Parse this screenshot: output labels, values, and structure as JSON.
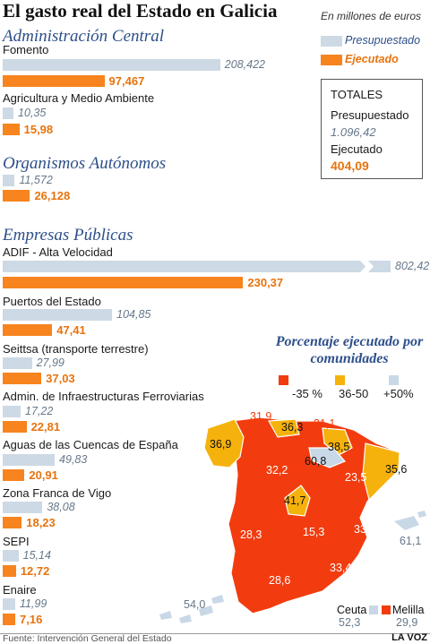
{
  "title": "El gasto real del Estado en Galicia",
  "units": "En millones de euros",
  "legend": {
    "presupuestado": "Presupuestado",
    "ejecutado": "Ejecutado"
  },
  "colors": {
    "presupuestado": "#cdd9e5",
    "ejecutado": "#f7841e",
    "section": "#2d4f8a",
    "red": "#f23c0f",
    "yellow": "#f6b20c",
    "light": "#c9d8e6"
  },
  "totals": {
    "heading": "TOTALES",
    "pres_label": "Presupuestado",
    "pres_value": "1.096,42",
    "ejec_label": "Ejecutado",
    "ejec_value": "404,09"
  },
  "chart_data": {
    "type": "bar",
    "sections": [
      {
        "name": "Administración Central",
        "items": [
          {
            "label": "Fomento",
            "presupuestado": 208.422,
            "presupuestado_text": "208,422",
            "ejecutado": 97.467,
            "ejecutado_text": "97,467"
          },
          {
            "label": "Agricultura y Medio Ambiente",
            "presupuestado": 10.35,
            "presupuestado_text": "10,35",
            "ejecutado": 15.98,
            "ejecutado_text": "15,98"
          }
        ]
      },
      {
        "name": "Organismos Autónomos",
        "items": [
          {
            "label": "",
            "presupuestado": 11.572,
            "presupuestado_text": "11,572",
            "ejecutado": 26.128,
            "ejecutado_text": "26,128"
          }
        ]
      },
      {
        "name": "Empresas Públicas",
        "items": [
          {
            "label": "ADIF - Alta Velocidad",
            "presupuestado": 802.42,
            "presupuestado_text": "802,42",
            "ejecutado": 230.37,
            "ejecutado_text": "230,37",
            "broken": true
          },
          {
            "label": "Puertos del Estado",
            "presupuestado": 104.85,
            "presupuestado_text": "104,85",
            "ejecutado": 47.41,
            "ejecutado_text": "47,41"
          },
          {
            "label": "Seittsa (transporte terrestre)",
            "presupuestado": 27.99,
            "presupuestado_text": "27,99",
            "ejecutado": 37.03,
            "ejecutado_text": "37,03"
          },
          {
            "label": "Admin. de Infraestructuras Ferroviarias",
            "presupuestado": 17.22,
            "presupuestado_text": "17,22",
            "ejecutado": 22.81,
            "ejecutado_text": "22,81"
          },
          {
            "label": "Aguas de las Cuencas de España",
            "presupuestado": 49.83,
            "presupuestado_text": "49,83",
            "ejecutado": 20.91,
            "ejecutado_text": "20,91"
          },
          {
            "label": "Zona Franca de Vigo",
            "presupuestado": 38.08,
            "presupuestado_text": "38,08",
            "ejecutado": 18.23,
            "ejecutado_text": "18,23"
          },
          {
            "label": "SEPI",
            "presupuestado": 15.14,
            "presupuestado_text": "15,14",
            "ejecutado": 12.72,
            "ejecutado_text": "12,72"
          },
          {
            "label": "Enaire",
            "presupuestado": 11.99,
            "presupuestado_text": "11,99",
            "ejecutado": 7.16,
            "ejecutado_text": "7,16"
          }
        ]
      }
    ],
    "map": {
      "title": "Porcentaje ejecutado por comunidades",
      "ranges": [
        {
          "label": "-35 %",
          "color": "#f23c0f"
        },
        {
          "label": "36-50",
          "color": "#f6b20c"
        },
        {
          "label": "+50%",
          "color": "#c9d8e6"
        }
      ],
      "regions": [
        {
          "name": "Galicia",
          "value": "36,9",
          "range": "36-50"
        },
        {
          "name": "Asturias",
          "value": "31,9",
          "range": "-35 %"
        },
        {
          "name": "Cantabria",
          "value": "36,3",
          "range": "36-50"
        },
        {
          "name": "País Vasco",
          "value": "31,1",
          "range": "-35 %"
        },
        {
          "name": "Navarra",
          "value": "38,5",
          "range": "36-50"
        },
        {
          "name": "La Rioja",
          "value": "60,8",
          "range": "+50%"
        },
        {
          "name": "Aragón",
          "value": "23,5",
          "range": "-35 %"
        },
        {
          "name": "Cataluña",
          "value": "35,6",
          "range": "36-50"
        },
        {
          "name": "Castilla y León",
          "value": "32,2",
          "range": "-35 %"
        },
        {
          "name": "Madrid",
          "value": "41,7",
          "range": "36-50"
        },
        {
          "name": "Extremadura",
          "value": "28,3",
          "range": "-35 %"
        },
        {
          "name": "Castilla-La Mancha",
          "value": "15,3",
          "range": "-35 %"
        },
        {
          "name": "Comunidad Valenciana",
          "value": "33,4",
          "range": "-35 %"
        },
        {
          "name": "Baleares",
          "value": "61,1",
          "range": "+50%"
        },
        {
          "name": "Andalucía",
          "value": "28,6",
          "range": "-35 %"
        },
        {
          "name": "Murcia",
          "value": "33,4",
          "range": "-35 %"
        },
        {
          "name": "Canarias",
          "value": "54,0",
          "range": "+50%"
        },
        {
          "name": "Ceuta",
          "value": "52,3",
          "range": "+50%"
        },
        {
          "name": "Melilla",
          "value": "29,9",
          "range": "-35 %"
        }
      ]
    }
  },
  "source": "Fuente: Intervención General del Estado",
  "brand": "LA VOZ"
}
